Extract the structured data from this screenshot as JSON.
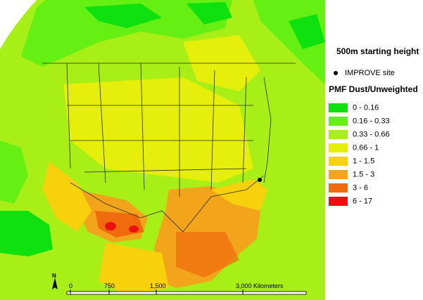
{
  "legend": {
    "title": "500m starting height",
    "site_label": "IMPROVE site",
    "heading": "PMF Dust/Unweighted",
    "classes": [
      {
        "label": "0 - 0.16",
        "color": "#0ee10e"
      },
      {
        "label": "0.16 - 0.33",
        "color": "#66ef13"
      },
      {
        "label": "0.33 - 0.66",
        "color": "#a8ee17"
      },
      {
        "label": "0.66 - 1",
        "color": "#e5ef0a"
      },
      {
        "label": "1 - 1.5",
        "color": "#f7d10b"
      },
      {
        "label": "1.5 - 3",
        "color": "#f2a51a"
      },
      {
        "label": "3 - 6",
        "color": "#f06a0e"
      },
      {
        "label": "6 - 17",
        "color": "#ee1010"
      }
    ]
  },
  "scalebar": {
    "labels": [
      "0",
      "750",
      "1,500",
      "3,000 Kilometers"
    ]
  },
  "north_label": "N"
}
